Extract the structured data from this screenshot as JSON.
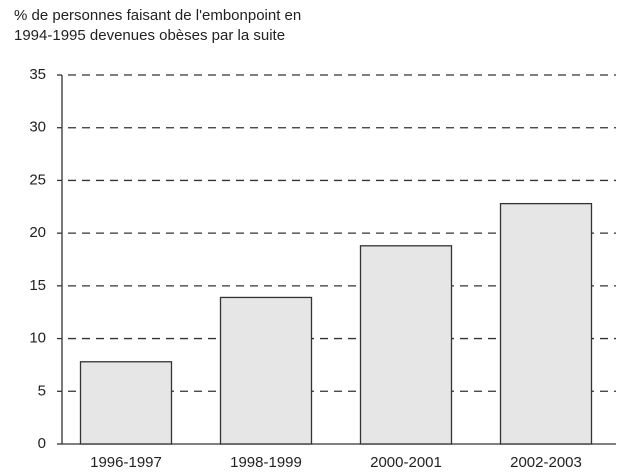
{
  "chart_data": {
    "type": "bar",
    "title": [
      "% de personnes faisant de l'embonpoint en",
      "1994-1995 devenues obèses par la suite"
    ],
    "categories": [
      "1996-1997",
      "1998-1999",
      "2000-2001",
      "2002-2003"
    ],
    "values": [
      7.8,
      13.9,
      18.8,
      22.8
    ],
    "color": "#e6e6e6",
    "ylim": [
      0,
      35
    ],
    "yticks": [
      0,
      5,
      10,
      15,
      20,
      25,
      30,
      35
    ],
    "grid": true
  }
}
